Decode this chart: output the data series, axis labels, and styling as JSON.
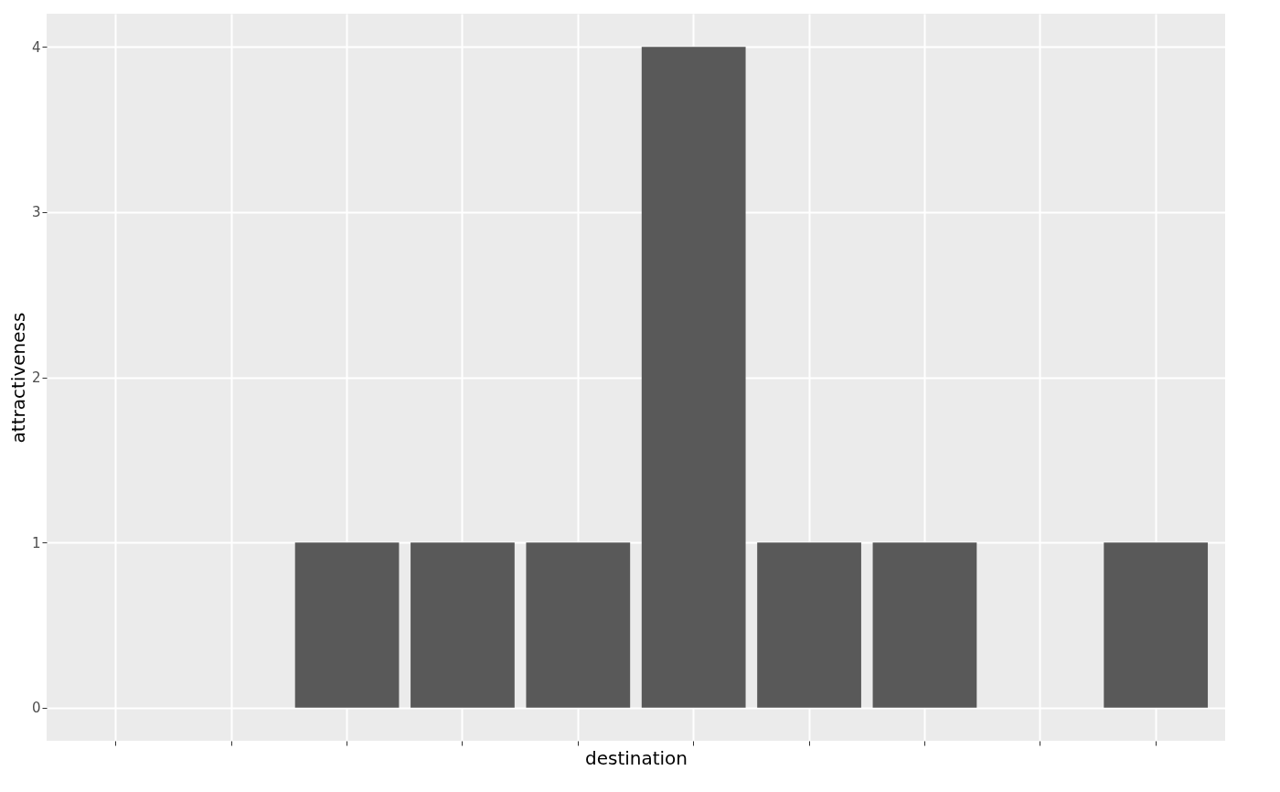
{
  "chart_data": {
    "type": "bar",
    "categories": [
      null,
      null,
      null,
      null,
      null,
      null,
      null,
      null,
      null,
      null
    ],
    "values": [
      null,
      null,
      1,
      1,
      1,
      4,
      1,
      1,
      null,
      1
    ],
    "color": "#595959",
    "xlabel": "destination",
    "ylabel": "attractiveness",
    "ylim": [
      -0.2,
      4.2
    ],
    "yticks": [
      0,
      1,
      2,
      3,
      4
    ],
    "grid": true,
    "tick_labels": "y"
  }
}
